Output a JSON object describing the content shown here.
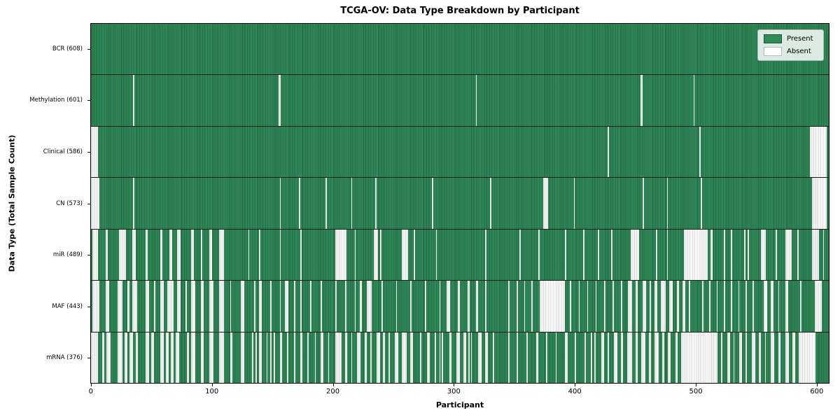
{
  "chart_data": {
    "type": "heatmap",
    "title": "TCGA-OV: Data Type Breakdown by Participant",
    "xlabel": "Participant",
    "ylabel": "Data Type (Total Sample Count)",
    "x_ticks": [
      0,
      100,
      200,
      300,
      400,
      500,
      600
    ],
    "x_axis_max": 610,
    "total_participants": 608,
    "grid": false,
    "legend_position": "upper right",
    "legend": [
      {
        "label": "Present",
        "color": "#2e8b57"
      },
      {
        "label": "Absent",
        "color": "#ffffff"
      }
    ],
    "colors": {
      "present": "#2e8b57",
      "present_edge": "#1c5735",
      "present_light": "#379663",
      "absent": "#ffffff",
      "absent_edge": "#bdbdbd"
    },
    "rows": [
      {
        "name": "BCR",
        "count": 608,
        "label": "BCR (608)",
        "absent_ranges": []
      },
      {
        "name": "Methylation",
        "count": 601,
        "label": "Methylation (601)",
        "absent_ranges": [
          [
            35,
            1
          ],
          [
            155,
            2
          ],
          [
            318,
            1
          ],
          [
            454,
            2
          ],
          [
            498,
            1
          ]
        ]
      },
      {
        "name": "Clinical",
        "count": 586,
        "label": "Clinical (586)",
        "absent_ranges": [
          [
            0,
            6
          ],
          [
            427,
            1
          ],
          [
            503,
            1
          ],
          [
            594,
            14
          ]
        ]
      },
      {
        "name": "CN",
        "count": 573,
        "label": "CN (573)",
        "absent_ranges": [
          [
            0,
            7
          ],
          [
            35,
            1
          ],
          [
            156,
            1
          ],
          [
            172,
            1
          ],
          [
            194,
            1
          ],
          [
            215,
            1
          ],
          [
            235,
            1
          ],
          [
            282,
            1
          ],
          [
            330,
            1
          ],
          [
            374,
            4
          ],
          [
            399,
            1
          ],
          [
            456,
            1
          ],
          [
            476,
            1
          ],
          [
            504,
            1
          ],
          [
            596,
            12
          ]
        ]
      },
      {
        "name": "miR",
        "count": 489,
        "label": "miR (489)",
        "absent_ranges": [
          [
            1,
            5
          ],
          [
            12,
            2
          ],
          [
            23,
            6
          ],
          [
            34,
            3
          ],
          [
            45,
            2
          ],
          [
            57,
            2
          ],
          [
            65,
            2
          ],
          [
            71,
            3
          ],
          [
            83,
            2
          ],
          [
            91,
            1
          ],
          [
            98,
            2
          ],
          [
            106,
            4
          ],
          [
            130,
            1
          ],
          [
            139,
            1
          ],
          [
            156,
            1
          ],
          [
            173,
            1
          ],
          [
            202,
            9
          ],
          [
            218,
            1
          ],
          [
            234,
            3
          ],
          [
            239,
            1
          ],
          [
            257,
            5
          ],
          [
            267,
            1
          ],
          [
            285,
            1
          ],
          [
            326,
            1
          ],
          [
            354,
            1
          ],
          [
            370,
            1
          ],
          [
            392,
            1
          ],
          [
            407,
            1
          ],
          [
            419,
            1
          ],
          [
            430,
            1
          ],
          [
            446,
            7
          ],
          [
            467,
            1
          ],
          [
            476,
            1
          ],
          [
            490,
            20
          ],
          [
            512,
            2
          ],
          [
            523,
            1
          ],
          [
            529,
            1
          ],
          [
            540,
            1
          ],
          [
            543,
            1
          ],
          [
            554,
            4
          ],
          [
            566,
            1
          ],
          [
            574,
            5
          ],
          [
            584,
            1
          ],
          [
            596,
            6
          ],
          [
            605,
            1
          ]
        ]
      },
      {
        "name": "MAF",
        "count": 443,
        "label": "MAF (443)",
        "absent_ranges": [
          [
            1,
            6
          ],
          [
            12,
            3
          ],
          [
            22,
            4
          ],
          [
            30,
            2
          ],
          [
            34,
            4
          ],
          [
            45,
            3
          ],
          [
            52,
            1
          ],
          [
            57,
            3
          ],
          [
            63,
            5
          ],
          [
            71,
            3
          ],
          [
            78,
            1
          ],
          [
            83,
            3
          ],
          [
            91,
            2
          ],
          [
            98,
            3
          ],
          [
            106,
            4
          ],
          [
            115,
            1
          ],
          [
            124,
            3
          ],
          [
            135,
            1
          ],
          [
            139,
            2
          ],
          [
            148,
            1
          ],
          [
            156,
            1
          ],
          [
            160,
            3
          ],
          [
            168,
            1
          ],
          [
            173,
            1
          ],
          [
            181,
            1
          ],
          [
            190,
            1
          ],
          [
            202,
            1
          ],
          [
            210,
            1
          ],
          [
            218,
            1
          ],
          [
            222,
            2
          ],
          [
            228,
            4
          ],
          [
            240,
            1
          ],
          [
            252,
            1
          ],
          [
            264,
            1
          ],
          [
            276,
            1
          ],
          [
            288,
            1
          ],
          [
            294,
            3
          ],
          [
            303,
            2
          ],
          [
            311,
            2
          ],
          [
            318,
            2
          ],
          [
            326,
            1
          ],
          [
            345,
            1
          ],
          [
            352,
            1
          ],
          [
            358,
            1
          ],
          [
            364,
            1
          ],
          [
            371,
            21
          ],
          [
            396,
            1
          ],
          [
            403,
            1
          ],
          [
            410,
            1
          ],
          [
            417,
            1
          ],
          [
            424,
            1
          ],
          [
            431,
            1
          ],
          [
            438,
            1
          ],
          [
            444,
            3
          ],
          [
            450,
            2
          ],
          [
            456,
            3
          ],
          [
            462,
            1
          ],
          [
            466,
            2
          ],
          [
            471,
            4
          ],
          [
            478,
            3
          ],
          [
            484,
            2
          ],
          [
            489,
            2
          ],
          [
            494,
            1
          ],
          [
            505,
            1
          ],
          [
            511,
            1
          ],
          [
            517,
            1
          ],
          [
            523,
            1
          ],
          [
            529,
            1
          ],
          [
            535,
            1
          ],
          [
            541,
            1
          ],
          [
            547,
            1
          ],
          [
            556,
            3
          ],
          [
            562,
            2
          ],
          [
            568,
            1
          ],
          [
            574,
            2
          ],
          [
            586,
            1
          ],
          [
            598,
            6
          ]
        ]
      },
      {
        "name": "mRNA",
        "count": 376,
        "label": "mRNA (376)",
        "absent_ranges": [
          [
            0,
            6
          ],
          [
            9,
            2
          ],
          [
            13,
            3
          ],
          [
            22,
            4
          ],
          [
            28,
            2
          ],
          [
            32,
            3
          ],
          [
            37,
            2
          ],
          [
            45,
            3
          ],
          [
            50,
            2
          ],
          [
            57,
            3
          ],
          [
            62,
            2
          ],
          [
            66,
            2
          ],
          [
            70,
            3
          ],
          [
            79,
            2
          ],
          [
            83,
            3
          ],
          [
            91,
            2
          ],
          [
            98,
            3
          ],
          [
            106,
            4
          ],
          [
            115,
            2
          ],
          [
            124,
            3
          ],
          [
            133,
            1
          ],
          [
            136,
            1
          ],
          [
            139,
            2
          ],
          [
            145,
            1
          ],
          [
            148,
            1
          ],
          [
            151,
            1
          ],
          [
            156,
            2
          ],
          [
            162,
            1
          ],
          [
            168,
            1
          ],
          [
            173,
            2
          ],
          [
            179,
            1
          ],
          [
            185,
            1
          ],
          [
            190,
            2
          ],
          [
            196,
            1
          ],
          [
            202,
            5
          ],
          [
            210,
            2
          ],
          [
            215,
            1
          ],
          [
            220,
            3
          ],
          [
            226,
            2
          ],
          [
            231,
            1
          ],
          [
            236,
            3
          ],
          [
            241,
            2
          ],
          [
            246,
            1
          ],
          [
            251,
            3
          ],
          [
            257,
            4
          ],
          [
            264,
            2
          ],
          [
            272,
            1
          ],
          [
            278,
            2
          ],
          [
            284,
            1
          ],
          [
            288,
            1
          ],
          [
            290,
            1
          ],
          [
            296,
            2
          ],
          [
            302,
            3
          ],
          [
            308,
            2
          ],
          [
            312,
            1
          ],
          [
            314,
            1
          ],
          [
            320,
            3
          ],
          [
            326,
            2
          ],
          [
            332,
            1
          ],
          [
            345,
            1
          ],
          [
            352,
            1
          ],
          [
            360,
            1
          ],
          [
            368,
            2
          ],
          [
            376,
            1
          ],
          [
            384,
            1
          ],
          [
            392,
            2
          ],
          [
            400,
            1
          ],
          [
            408,
            1
          ],
          [
            413,
            1
          ],
          [
            416,
            1
          ],
          [
            422,
            2
          ],
          [
            427,
            1
          ],
          [
            432,
            3
          ],
          [
            438,
            2
          ],
          [
            443,
            4
          ],
          [
            450,
            2
          ],
          [
            455,
            3
          ],
          [
            461,
            2
          ],
          [
            466,
            3
          ],
          [
            472,
            2
          ],
          [
            477,
            2
          ],
          [
            483,
            2
          ],
          [
            488,
            30
          ],
          [
            521,
            1
          ],
          [
            526,
            2
          ],
          [
            531,
            1
          ],
          [
            536,
            2
          ],
          [
            541,
            1
          ],
          [
            546,
            3
          ],
          [
            552,
            2
          ],
          [
            557,
            1
          ],
          [
            562,
            3
          ],
          [
            568,
            2
          ],
          [
            574,
            3
          ],
          [
            580,
            2
          ],
          [
            585,
            14
          ]
        ]
      }
    ]
  }
}
